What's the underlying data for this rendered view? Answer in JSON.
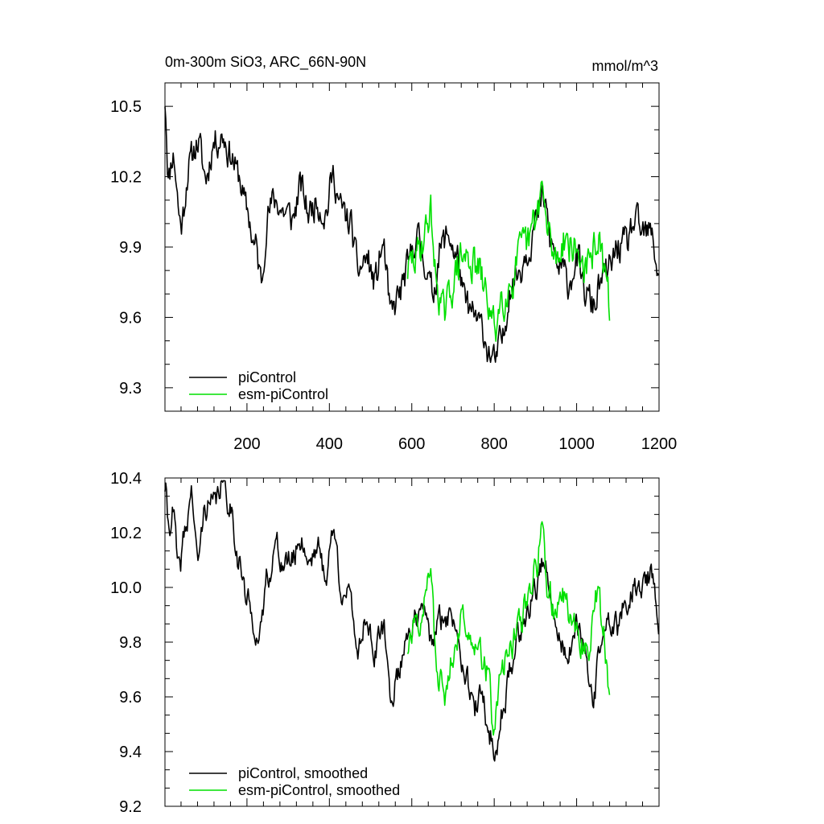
{
  "header": {
    "title": "0m-300m SiO3, ARC_66N-90N",
    "units": "mmol/m^3"
  },
  "colors": {
    "picontrol": "#000000",
    "esm_picontrol": "#00e000"
  },
  "chart_data": [
    {
      "type": "line",
      "name": "annual",
      "xlim": [
        1,
        1200
      ],
      "ylim": [
        9.2,
        10.6
      ],
      "xticks": [
        200,
        400,
        600,
        800,
        1000,
        1200
      ],
      "yticks": [
        9.3,
        9.6,
        9.9,
        10.2,
        10.5
      ],
      "ytick_labels": [
        "9.3",
        "9.6",
        "9.9",
        "10.2",
        "10.5"
      ],
      "xtick_labels": [
        "200",
        "400",
        "600",
        "800",
        "1000",
        "1200"
      ],
      "legend": [
        "piControl",
        "esm-piControl"
      ],
      "legend_position": "bottom-left",
      "series": [
        {
          "name": "piControl",
          "x_start": 1,
          "x_end": 1200,
          "anchors": [
            [
              1,
              10.53
            ],
            [
              10,
              10.2
            ],
            [
              20,
              10.3
            ],
            [
              40,
              10.0
            ],
            [
              60,
              10.25
            ],
            [
              80,
              10.35
            ],
            [
              100,
              10.2
            ],
            [
              120,
              10.35
            ],
            [
              140,
              10.38
            ],
            [
              160,
              10.3
            ],
            [
              180,
              10.2
            ],
            [
              200,
              10.05
            ],
            [
              220,
              9.9
            ],
            [
              235,
              9.76
            ],
            [
              250,
              10.05
            ],
            [
              270,
              10.1
            ],
            [
              290,
              10.05
            ],
            [
              310,
              10.02
            ],
            [
              330,
              10.15
            ],
            [
              350,
              10.05
            ],
            [
              370,
              10.1
            ],
            [
              390,
              10.05
            ],
            [
              410,
              10.2
            ],
            [
              430,
              10.05
            ],
            [
              450,
              10.0
            ],
            [
              470,
              9.8
            ],
            [
              490,
              9.85
            ],
            [
              510,
              9.75
            ],
            [
              530,
              9.9
            ],
            [
              550,
              9.6
            ],
            [
              570,
              9.7
            ],
            [
              590,
              9.8
            ],
            [
              610,
              9.95
            ],
            [
              630,
              9.85
            ],
            [
              650,
              9.7
            ],
            [
              670,
              9.9
            ],
            [
              690,
              9.95
            ],
            [
              710,
              9.85
            ],
            [
              730,
              9.65
            ],
            [
              750,
              9.6
            ],
            [
              770,
              9.55
            ],
            [
              790,
              9.45
            ],
            [
              800,
              9.4
            ],
            [
              820,
              9.5
            ],
            [
              840,
              9.75
            ],
            [
              860,
              9.8
            ],
            [
              880,
              9.9
            ],
            [
              900,
              10.0
            ],
            [
              920,
              10.1
            ],
            [
              940,
              9.9
            ],
            [
              960,
              9.8
            ],
            [
              980,
              9.75
            ],
            [
              1000,
              9.85
            ],
            [
              1020,
              9.7
            ],
            [
              1040,
              9.65
            ],
            [
              1060,
              9.75
            ],
            [
              1080,
              9.8
            ],
            [
              1100,
              9.9
            ],
            [
              1120,
              9.9
            ],
            [
              1140,
              10.0
            ],
            [
              1160,
              9.95
            ],
            [
              1180,
              9.95
            ],
            [
              1200,
              9.8
            ]
          ],
          "amp": 0.075,
          "seed": 11
        },
        {
          "name": "esm-piControl",
          "x_start": 590,
          "x_end": 1080,
          "anchors": [
            [
              590,
              9.8
            ],
            [
              610,
              9.85
            ],
            [
              630,
              9.95
            ],
            [
              645,
              10.05
            ],
            [
              660,
              9.75
            ],
            [
              680,
              9.6
            ],
            [
              700,
              9.75
            ],
            [
              720,
              9.85
            ],
            [
              740,
              9.85
            ],
            [
              760,
              9.8
            ],
            [
              780,
              9.7
            ],
            [
              800,
              9.55
            ],
            [
              820,
              9.7
            ],
            [
              840,
              9.75
            ],
            [
              860,
              9.85
            ],
            [
              880,
              9.9
            ],
            [
              900,
              10.0
            ],
            [
              915,
              10.15
            ],
            [
              930,
              9.95
            ],
            [
              950,
              9.85
            ],
            [
              970,
              9.95
            ],
            [
              990,
              9.9
            ],
            [
              1010,
              9.85
            ],
            [
              1030,
              9.8
            ],
            [
              1050,
              9.95
            ],
            [
              1065,
              9.8
            ],
            [
              1080,
              9.65
            ]
          ],
          "amp": 0.09,
          "seed": 29
        }
      ]
    },
    {
      "type": "line",
      "name": "smoothed",
      "xlim": [
        1,
        1200
      ],
      "ylim": [
        9.2,
        10.4
      ],
      "yticks": [
        9.2,
        9.4,
        9.6,
        9.8,
        10.0,
        10.2,
        10.4
      ],
      "ytick_labels": [
        "9.2",
        "9.4",
        "9.6",
        "9.8",
        "10.0",
        "10.2",
        "10.4"
      ],
      "legend": [
        "piControl, smoothed",
        "esm-piControl, smoothed"
      ],
      "legend_position": "bottom-left",
      "series": [
        {
          "name": "piControl, smoothed",
          "x_start": 1,
          "x_end": 1200,
          "anchors": [
            [
              1,
              10.37
            ],
            [
              10,
              10.22
            ],
            [
              20,
              10.28
            ],
            [
              35,
              10.05
            ],
            [
              50,
              10.2
            ],
            [
              65,
              10.35
            ],
            [
              80,
              10.1
            ],
            [
              100,
              10.3
            ],
            [
              120,
              10.3
            ],
            [
              140,
              10.38
            ],
            [
              160,
              10.3
            ],
            [
              180,
              10.1
            ],
            [
              200,
              9.95
            ],
            [
              215,
              9.88
            ],
            [
              230,
              9.8
            ],
            [
              250,
              10.05
            ],
            [
              270,
              10.15
            ],
            [
              290,
              10.08
            ],
            [
              310,
              10.1
            ],
            [
              330,
              10.18
            ],
            [
              350,
              10.1
            ],
            [
              370,
              10.15
            ],
            [
              390,
              10.05
            ],
            [
              410,
              10.2
            ],
            [
              430,
              10.0
            ],
            [
              450,
              9.95
            ],
            [
              470,
              9.78
            ],
            [
              490,
              9.9
            ],
            [
              510,
              9.75
            ],
            [
              530,
              9.85
            ],
            [
              550,
              9.6
            ],
            [
              570,
              9.7
            ],
            [
              590,
              9.85
            ],
            [
              610,
              9.88
            ],
            [
              630,
              9.9
            ],
            [
              650,
              9.8
            ],
            [
              670,
              9.88
            ],
            [
              690,
              9.9
            ],
            [
              710,
              9.85
            ],
            [
              730,
              9.7
            ],
            [
              750,
              9.55
            ],
            [
              770,
              9.6
            ],
            [
              790,
              9.45
            ],
            [
              805,
              9.4
            ],
            [
              820,
              9.55
            ],
            [
              840,
              9.7
            ],
            [
              860,
              9.85
            ],
            [
              880,
              9.9
            ],
            [
              900,
              10.0
            ],
            [
              920,
              10.1
            ],
            [
              940,
              9.9
            ],
            [
              960,
              9.8
            ],
            [
              980,
              9.75
            ],
            [
              1000,
              9.85
            ],
            [
              1020,
              9.75
            ],
            [
              1040,
              9.6
            ],
            [
              1060,
              9.8
            ],
            [
              1080,
              9.88
            ],
            [
              1100,
              9.85
            ],
            [
              1120,
              9.95
            ],
            [
              1140,
              10.0
            ],
            [
              1160,
              10.0
            ],
            [
              1180,
              10.05
            ],
            [
              1200,
              9.85
            ]
          ],
          "amp": 0.05,
          "seed": 41
        },
        {
          "name": "esm-piControl, smoothed",
          "x_start": 590,
          "x_end": 1080,
          "anchors": [
            [
              590,
              9.78
            ],
            [
              610,
              9.85
            ],
            [
              630,
              9.95
            ],
            [
              645,
              10.08
            ],
            [
              660,
              9.7
            ],
            [
              680,
              9.6
            ],
            [
              700,
              9.78
            ],
            [
              720,
              9.88
            ],
            [
              740,
              9.85
            ],
            [
              760,
              9.82
            ],
            [
              780,
              9.7
            ],
            [
              800,
              9.5
            ],
            [
              820,
              9.7
            ],
            [
              840,
              9.78
            ],
            [
              860,
              9.85
            ],
            [
              880,
              9.95
            ],
            [
              900,
              10.05
            ],
            [
              915,
              10.2
            ],
            [
              930,
              10.0
            ],
            [
              950,
              9.9
            ],
            [
              970,
              9.98
            ],
            [
              990,
              9.85
            ],
            [
              1010,
              9.8
            ],
            [
              1030,
              9.78
            ],
            [
              1050,
              9.98
            ],
            [
              1065,
              9.85
            ],
            [
              1080,
              9.6
            ]
          ],
          "amp": 0.06,
          "seed": 57
        }
      ]
    }
  ]
}
